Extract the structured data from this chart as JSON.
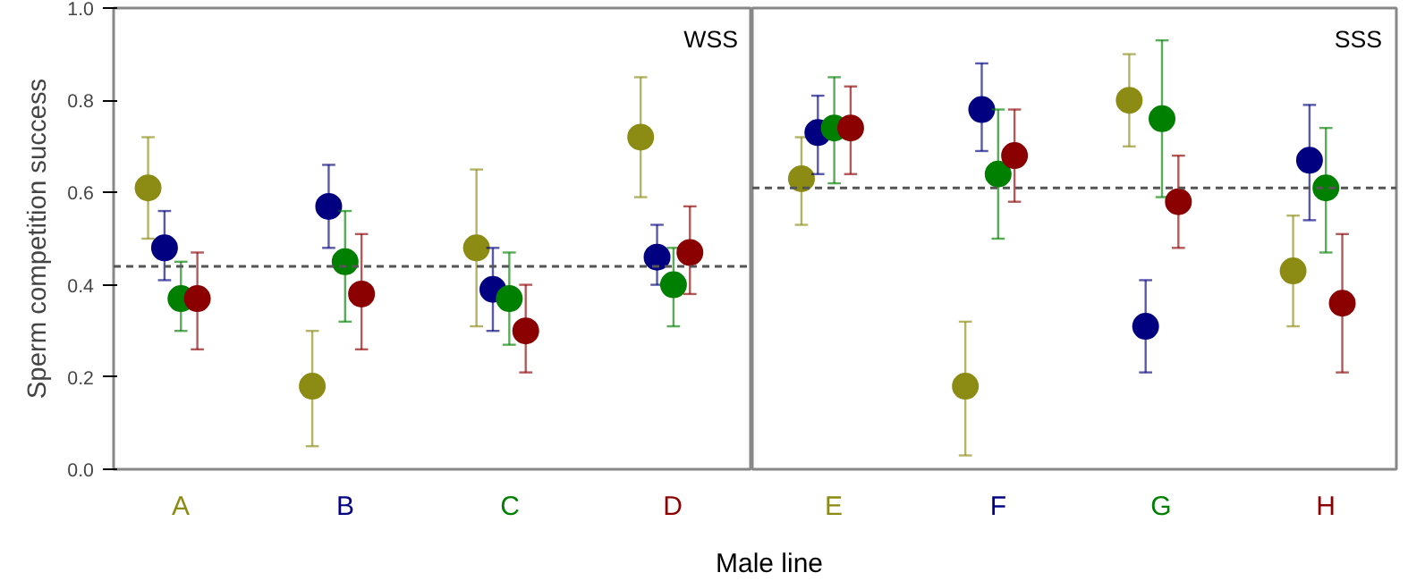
{
  "chart_data": [
    {
      "type": "scatter",
      "categories": [
        "A",
        "B",
        "C",
        "D"
      ],
      "ylabel": "Sperm competition success",
      "xlabel": "Male line",
      "annotations": [
        "WSS"
      ],
      "ylim": [
        0,
        1
      ],
      "yticks": [
        {
          "value": 0,
          "label": "0.0"
        },
        {
          "value": 0.2,
          "label": "0.2"
        },
        {
          "value": 0.4,
          "label": "0.4"
        },
        {
          "value": 0.6,
          "label": "0.6"
        },
        {
          "value": 0.8,
          "label": "0.8"
        },
        {
          "value": 1,
          "label": "1.0"
        }
      ],
      "marker": "circle",
      "grid": false,
      "ref_lines": [
        {
          "axis": "y",
          "value": 0.44,
          "line_style": "dashed",
          "color": "#555555"
        }
      ],
      "series": [
        {
          "color": "#8c8c14",
          "values": [
            0.61,
            0.18,
            0.48,
            0.72
          ],
          "errors": [
            [
              0.5,
              0.72
            ],
            [
              0.05,
              0.3
            ],
            [
              0.31,
              0.65
            ],
            [
              0.59,
              0.85
            ]
          ]
        },
        {
          "color": "#000080",
          "values": [
            0.48,
            0.57,
            0.39,
            0.46
          ],
          "errors": [
            [
              0.41,
              0.56
            ],
            [
              0.48,
              0.66
            ],
            [
              0.3,
              0.48
            ],
            [
              0.4,
              0.53
            ]
          ]
        },
        {
          "color": "#008000",
          "values": [
            0.37,
            0.45,
            0.37,
            0.4
          ],
          "errors": [
            [
              0.3,
              0.45
            ],
            [
              0.32,
              0.56
            ],
            [
              0.27,
              0.47
            ],
            [
              0.31,
              0.48
            ]
          ]
        },
        {
          "color": "#8b0000",
          "values": [
            0.37,
            0.38,
            0.3,
            0.47
          ],
          "errors": [
            [
              0.26,
              0.47
            ],
            [
              0.26,
              0.51
            ],
            [
              0.21,
              0.4
            ],
            [
              0.38,
              0.57
            ]
          ]
        }
      ]
    },
    {
      "type": "scatter",
      "categories": [
        "E",
        "F",
        "G",
        "H"
      ],
      "annotations": [
        "SSS"
      ],
      "ylim": [
        0,
        1
      ],
      "tick_labels": "x",
      "marker": "circle",
      "grid": false,
      "ref_lines": [
        {
          "axis": "y",
          "value": 0.61,
          "line_style": "dashed",
          "color": "#555555"
        }
      ],
      "series": [
        {
          "color": "#8c8c14",
          "values": [
            0.63,
            0.18,
            0.8,
            0.43
          ],
          "errors": [
            [
              0.53,
              0.72
            ],
            [
              0.03,
              0.32
            ],
            [
              0.7,
              0.9
            ],
            [
              0.31,
              0.55
            ]
          ]
        },
        {
          "color": "#000080",
          "values": [
            0.73,
            0.78,
            0.31,
            0.67
          ],
          "errors": [
            [
              0.64,
              0.81
            ],
            [
              0.69,
              0.88
            ],
            [
              0.21,
              0.41
            ],
            [
              0.54,
              0.79
            ]
          ]
        },
        {
          "color": "#008000",
          "values": [
            0.74,
            0.64,
            0.76,
            0.61
          ],
          "errors": [
            [
              0.62,
              0.85
            ],
            [
              0.5,
              0.78
            ],
            [
              0.59,
              0.93
            ],
            [
              0.47,
              0.74
            ]
          ]
        },
        {
          "color": "#8b0000",
          "values": [
            0.74,
            0.68,
            0.58,
            0.36
          ],
          "errors": [
            [
              0.64,
              0.83
            ],
            [
              0.58,
              0.78
            ],
            [
              0.48,
              0.68
            ],
            [
              0.21,
              0.51
            ]
          ]
        }
      ]
    }
  ]
}
